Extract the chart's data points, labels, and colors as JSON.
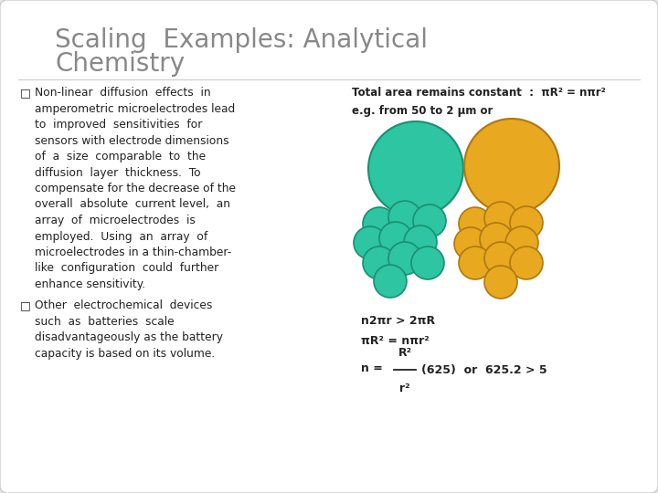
{
  "title_line1": "Scaling  Examples: Analytical",
  "title_line2": "Chemistry",
  "title_fontsize": 20,
  "title_color": "#888888",
  "bg_color": "#ffffff",
  "outer_bg": "#e8e8e8",
  "text_color": "#222222",
  "bullet_text_fontsize": 8.8,
  "eq_top": "Total area remains constant  :  πR² = nπr²",
  "eq_sub": "e.g. from 50 to 2 μm or",
  "teal_color": "#2dc5a2",
  "gold_color": "#e8a820",
  "teal_edge": "#1a9070",
  "gold_edge": "#b07810",
  "bullet1_lines": [
    "Non-linear  diffusion  effects  in",
    "amperometric microelectrodes lead",
    "to  improved  sensitivities  for",
    "sensors with electrode dimensions",
    "of  a  size  comparable  to  the",
    "diffusion  layer  thickness.  To",
    "compensate for the decrease of the",
    "overall  absolute  current level,  an",
    "array  of  microelectrodes  is",
    "employed.  Using  an  array  of",
    "microelectrodes in a thin-chamber-",
    "like  configuration  could  further",
    "enhance sensitivity."
  ],
  "bullet2_lines": [
    "Other  electrochemical  devices",
    "such  as  batteries  scale",
    "disadvantageously as the battery",
    "capacity is based on its volume."
  ],
  "fig_width": 7.2,
  "fig_height": 5.4,
  "dpi": 100
}
